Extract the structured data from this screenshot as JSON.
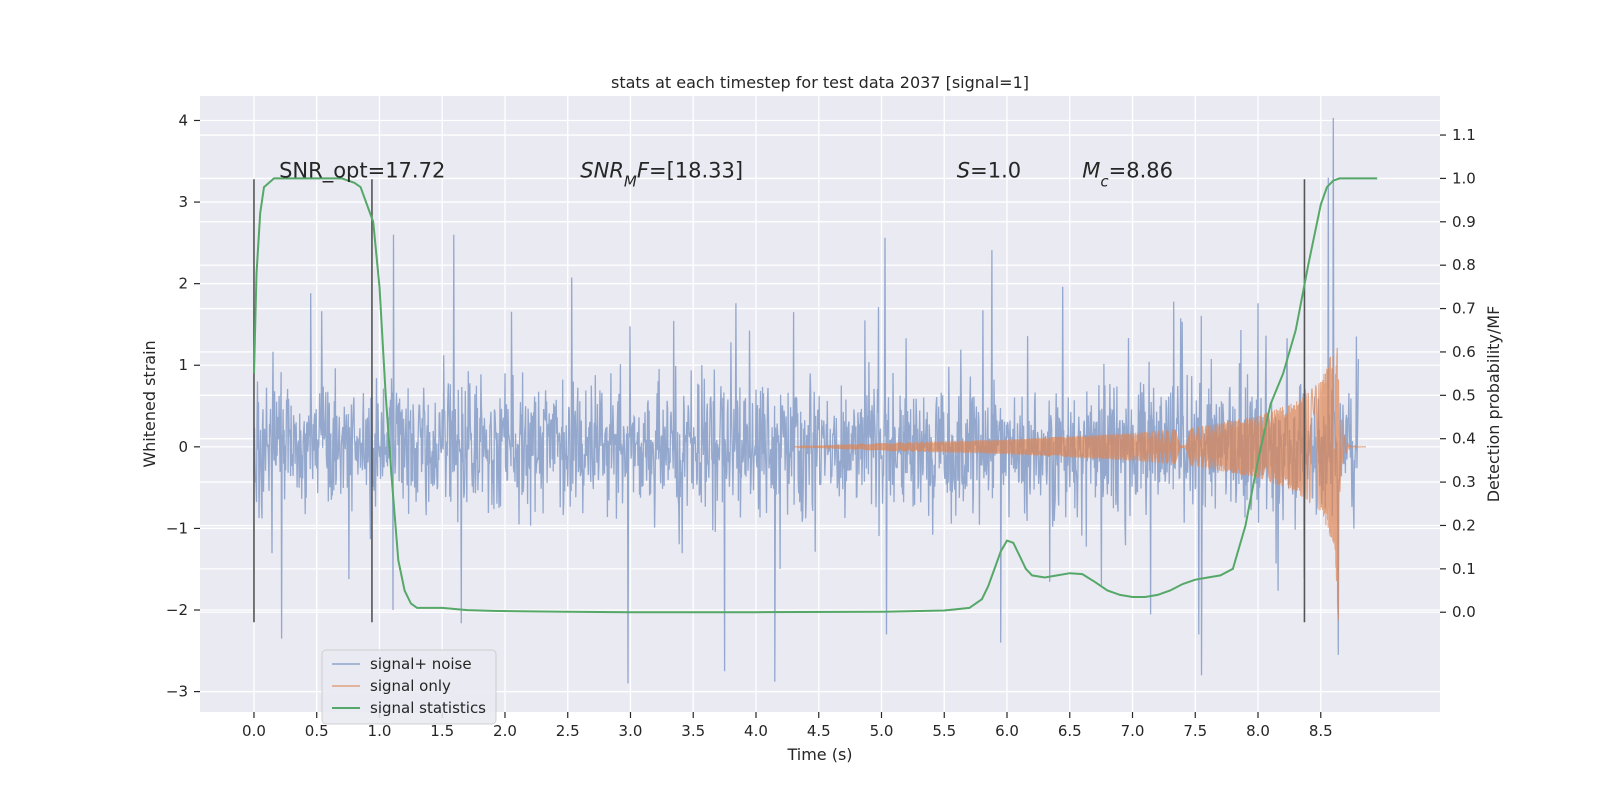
{
  "chart_data": {
    "type": "line",
    "title": "stats at each timestep for test data 2037 [signal=1]",
    "xlabel": "Time (s)",
    "ylabel_left": "Whitened strain",
    "ylabel_right": "Detection probability/MF",
    "xlim": [
      -0.43,
      9.45
    ],
    "ylim_left": [
      -3.25,
      4.3
    ],
    "ylim_right": [
      -0.23,
      1.19
    ],
    "x_ticks": [
      "0.0",
      "0.5",
      "1.0",
      "1.5",
      "2.0",
      "2.5",
      "3.0",
      "3.5",
      "4.0",
      "4.5",
      "5.0",
      "5.5",
      "6.0",
      "6.5",
      "7.0",
      "7.5",
      "8.0",
      "8.5"
    ],
    "y_ticks_left": [
      "−3",
      "−2",
      "−1",
      "0",
      "1",
      "2",
      "3",
      "4"
    ],
    "y_ticks_right": [
      "0.0",
      "0.1",
      "0.2",
      "0.3",
      "0.4",
      "0.5",
      "0.6",
      "0.7",
      "0.8",
      "0.9",
      "1.0",
      "1.1"
    ],
    "grid": true,
    "legend_position": "lower-left",
    "annotations": [
      {
        "parts": [
          {
            "t": "SNR_opt=17.72",
            "italic": false
          }
        ],
        "x": 0.2,
        "y": 3.3
      },
      {
        "parts": [
          {
            "t": "SNR",
            "italic": true
          },
          {
            "t": "M",
            "italic": true,
            "sub": true
          },
          {
            "t": "F",
            "italic": true
          },
          {
            "t": "=[18.33]",
            "italic": false
          }
        ],
        "x": 2.6,
        "y": 3.3
      },
      {
        "parts": [
          {
            "t": "S",
            "italic": true
          },
          {
            "t": "=1.0",
            "italic": false
          }
        ],
        "x": 5.6,
        "y": 3.3
      },
      {
        "parts": [
          {
            "t": "M",
            "italic": true
          },
          {
            "t": "c",
            "italic": true,
            "sub": true
          },
          {
            "t": "=8.86",
            "italic": false
          }
        ],
        "x": 6.6,
        "y": 3.3
      }
    ],
    "vlines": [
      {
        "x": 0.0,
        "y_range": [
          -2.15,
          3.28
        ]
      },
      {
        "x": 0.94,
        "y_range": [
          -2.15,
          3.28
        ]
      },
      {
        "x": 8.37,
        "y_range": [
          -2.15,
          3.28
        ]
      }
    ],
    "series": [
      {
        "name": "signal+ noise",
        "axis": "left",
        "color": "#8fa4cb",
        "kind": "noise",
        "x_range": [
          0.0,
          8.8
        ],
        "typical_amplitude": 1.1,
        "max": 4.05,
        "min": -2.9,
        "spikes": [
          [
            8.6,
            4.03
          ],
          [
            8.64,
            -2.55
          ],
          [
            2.98,
            -2.9
          ],
          [
            4.15,
            -2.88
          ],
          [
            7.55,
            -2.8
          ],
          [
            0.22,
            -2.35
          ],
          [
            3.75,
            -2.75
          ],
          [
            5.95,
            -2.4
          ],
          [
            8.56,
            3.3
          ]
        ]
      },
      {
        "name": "signal only",
        "axis": "left",
        "color": "#dd8452",
        "kind": "chirp",
        "onset": 4.3,
        "merger": 8.64,
        "peak_positive": 1.4,
        "peak_negative": -2.15,
        "amplitude_points": [
          [
            4.3,
            0.0
          ],
          [
            5.0,
            0.05
          ],
          [
            6.0,
            0.09
          ],
          [
            7.0,
            0.17
          ],
          [
            7.5,
            0.24
          ],
          [
            8.0,
            0.38
          ],
          [
            8.3,
            0.55
          ],
          [
            8.5,
            0.8
          ],
          [
            8.6,
            1.2
          ],
          [
            8.64,
            1.4
          ]
        ]
      },
      {
        "name": "signal statistics",
        "axis": "right",
        "color": "#55a868",
        "x": [
          0.0,
          0.02,
          0.05,
          0.08,
          0.12,
          0.16,
          0.2,
          0.3,
          0.5,
          0.6,
          0.7,
          0.8,
          0.85,
          0.9,
          0.95,
          1.0,
          1.05,
          1.1,
          1.15,
          1.2,
          1.25,
          1.3,
          1.4,
          1.5,
          1.7,
          1.9,
          2.2,
          2.5,
          3.0,
          4.0,
          5.0,
          5.5,
          5.7,
          5.8,
          5.85,
          5.9,
          5.95,
          6.0,
          6.05,
          6.1,
          6.15,
          6.2,
          6.3,
          6.4,
          6.5,
          6.6,
          6.7,
          6.8,
          6.9,
          7.0,
          7.1,
          7.2,
          7.3,
          7.4,
          7.5,
          7.6,
          7.7,
          7.8,
          7.9,
          8.0,
          8.1,
          8.2,
          8.3,
          8.4,
          8.45,
          8.5,
          8.55,
          8.6,
          8.65,
          8.7,
          8.8,
          8.9,
          8.95
        ],
        "y": [
          0.55,
          0.78,
          0.92,
          0.98,
          0.99,
          1.0,
          1.0,
          1.0,
          1.0,
          1.0,
          1.0,
          0.99,
          0.98,
          0.94,
          0.9,
          0.75,
          0.5,
          0.3,
          0.12,
          0.05,
          0.02,
          0.01,
          0.01,
          0.01,
          0.005,
          0.003,
          0.002,
          0.001,
          0.0,
          0.0,
          0.001,
          0.004,
          0.01,
          0.03,
          0.06,
          0.1,
          0.14,
          0.165,
          0.16,
          0.13,
          0.1,
          0.085,
          0.08,
          0.085,
          0.09,
          0.088,
          0.07,
          0.05,
          0.04,
          0.035,
          0.035,
          0.04,
          0.05,
          0.065,
          0.075,
          0.08,
          0.085,
          0.1,
          0.2,
          0.35,
          0.48,
          0.55,
          0.65,
          0.8,
          0.87,
          0.94,
          0.98,
          0.995,
          1.0,
          1.0,
          1.0,
          1.0,
          1.0
        ]
      }
    ]
  }
}
